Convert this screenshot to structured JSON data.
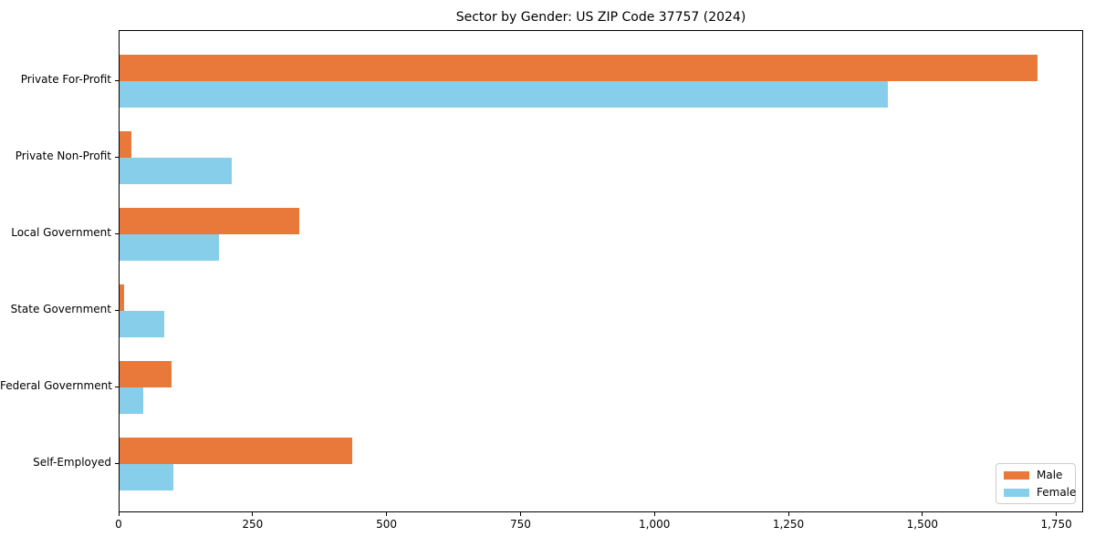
{
  "figure": {
    "title": "Sector by Gender: US ZIP Code 37757 (2024)"
  },
  "chart_data": {
    "type": "bar",
    "orientation": "horizontal",
    "title": "Sector by Gender: US ZIP Code 37757 (2024)",
    "categories": [
      "Private For-Profit",
      "Private Non-Profit",
      "Local Government",
      "State Government",
      "Federal Government",
      "Self-Employed"
    ],
    "series": [
      {
        "name": "Male",
        "color": "#e8793a",
        "values": [
          1714,
          22,
          335,
          8,
          97,
          434
        ]
      },
      {
        "name": "Female",
        "color": "#87ceeb",
        "values": [
          1434,
          209,
          185,
          83,
          45,
          100
        ]
      }
    ],
    "xlabel": "",
    "ylabel": "",
    "xlim": [
      0,
      1800
    ],
    "xticks": [
      0,
      250,
      500,
      750,
      1000,
      1250,
      1500,
      1750
    ],
    "xtick_labels": [
      "0",
      "250",
      "500",
      "750",
      "1,000",
      "1,250",
      "1,500",
      "1,750"
    ],
    "grid": false,
    "plot_background": "#ffffff",
    "axis_color": "#000000",
    "legend": {
      "position": "lower right",
      "entries": [
        "Male",
        "Female"
      ]
    }
  }
}
